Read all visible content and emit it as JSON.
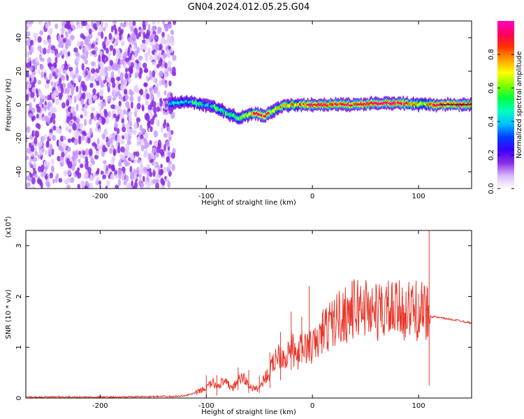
{
  "title": "GN04.2024.012.05.25.G04",
  "chart_data": [
    {
      "type": "heatmap",
      "xlabel": "Height of straight line (km)",
      "ylabel": "Frequency (Hz)",
      "xlim": [
        -270,
        150
      ],
      "ylim": [
        -50,
        50
      ],
      "x_ticks": [
        -200,
        -100,
        0,
        100
      ],
      "y_ticks": [
        -40,
        -20,
        0,
        20,
        40
      ],
      "colorbar": {
        "label": "Normalized spectral amplitude",
        "range": [
          0.0,
          1.0
        ],
        "ticks": [
          0.0,
          0.2,
          0.4,
          0.6,
          0.8
        ],
        "tick_labels": [
          "0.0",
          "0.2",
          "0.4",
          "0.6",
          "0.8"
        ],
        "colormap": [
          "#ffffff",
          "#d8b8ff",
          "#8a2be2",
          "#3a00ff",
          "#0040ff",
          "#00c0ff",
          "#00ffc0",
          "#00ff40",
          "#80ff00",
          "#ffff00",
          "#ffa000",
          "#ff3000",
          "#ff0060",
          "#ff00c0"
        ]
      },
      "noise_region": {
        "x_range": [
          -270,
          -130
        ],
        "y_range": [
          -50,
          50
        ],
        "amplitude": 0.15
      },
      "ridge": {
        "x": [
          -140,
          -130,
          -120,
          -110,
          -100,
          -90,
          -80,
          -70,
          -60,
          -55,
          -50,
          -45,
          -40,
          -35,
          -30,
          -20,
          -10,
          0,
          20,
          40,
          60,
          80,
          100,
          105,
          110,
          120,
          150
        ],
        "freq_hz": [
          0,
          1,
          2,
          1,
          0,
          -2,
          -5,
          -8,
          -6,
          -5,
          -6,
          -7,
          -5,
          -3,
          -1,
          0,
          0,
          0,
          0,
          0,
          1,
          1,
          0,
          1,
          0,
          0,
          0
        ],
        "amplitude": [
          0.15,
          0.4,
          0.4,
          0.5,
          0.4,
          0.5,
          0.5,
          0.6,
          0.7,
          0.9,
          0.9,
          0.9,
          0.8,
          0.6,
          0.7,
          0.7,
          0.8,
          0.9,
          0.9,
          0.9,
          1.0,
          0.9,
          0.8,
          0.5,
          0.9,
          0.9,
          0.9
        ]
      }
    },
    {
      "type": "line",
      "xlabel": "Height of straight line (km)",
      "ylabel": "SNR (10 * v/v)",
      "y_multiplier": "(x10",
      "y_multiplier_exp": "4",
      "y_multiplier_close": ")",
      "xlim": [
        -270,
        150
      ],
      "ylim": [
        0,
        3.3
      ],
      "x_ticks": [
        -200,
        -100,
        0,
        100
      ],
      "y_ticks": [
        0,
        1,
        2,
        3
      ],
      "color": "#e8382c",
      "series": [
        {
          "x": [
            -270,
            -240,
            -210,
            -180,
            -150,
            -130,
            -120,
            -110,
            -100,
            -95,
            -90,
            -85,
            -80,
            -75,
            -70,
            -65,
            -60,
            -55,
            -50,
            -45,
            -40,
            -35,
            -30,
            -25,
            -20,
            -15,
            -10,
            -5,
            0,
            5,
            10,
            15,
            20,
            25,
            30,
            35,
            40,
            45,
            50,
            55,
            60,
            65,
            70,
            75,
            80,
            85,
            90,
            95,
            100,
            103,
            106,
            108,
            110,
            111,
            112,
            115,
            120,
            130,
            140,
            150
          ],
          "y": [
            0.02,
            0.02,
            0.02,
            0.02,
            0.03,
            0.03,
            0.05,
            0.1,
            0.2,
            0.3,
            0.25,
            0.3,
            0.28,
            0.2,
            0.35,
            0.4,
            0.25,
            0.18,
            0.2,
            0.4,
            0.5,
            0.8,
            0.9,
            0.8,
            1.0,
            0.8,
            1.0,
            1.0,
            1.0,
            1.1,
            1.3,
            1.4,
            1.5,
            1.6,
            1.65,
            1.7,
            1.75,
            1.8,
            1.8,
            1.75,
            1.7,
            1.7,
            1.75,
            1.7,
            1.7,
            1.75,
            1.7,
            1.75,
            1.7,
            1.7,
            1.65,
            1.65,
            1.65,
            1.65,
            1.6,
            1.6,
            1.58,
            1.55,
            1.52,
            1.48
          ]
        }
      ],
      "spikes": {
        "x": [
          -100,
          -90,
          -70,
          -60,
          -50,
          -40,
          -30,
          -20,
          -10,
          -3,
          10,
          30,
          47,
          55,
          65,
          70,
          75,
          85,
          95,
          100,
          104,
          108,
          110
        ],
        "y": [
          0.45,
          0.45,
          0.6,
          0.55,
          0.45,
          0.9,
          1.3,
          1.7,
          1.6,
          2.2,
          1.75,
          1.95,
          1.9,
          2.0,
          2.2,
          2.0,
          2.2,
          2.0,
          1.95,
          2.05,
          2.05,
          2.2,
          3.3
        ],
        "dips": [
          0.05,
          0.05,
          0.15,
          0.1,
          0.1,
          0.2,
          0.35,
          0.55,
          0.7,
          0.9,
          1.3,
          1.65,
          1.55,
          1.45,
          1.4,
          1.45,
          1.45,
          1.45,
          1.5,
          1.5,
          1.5,
          1.2,
          0.25
        ]
      }
    }
  ]
}
